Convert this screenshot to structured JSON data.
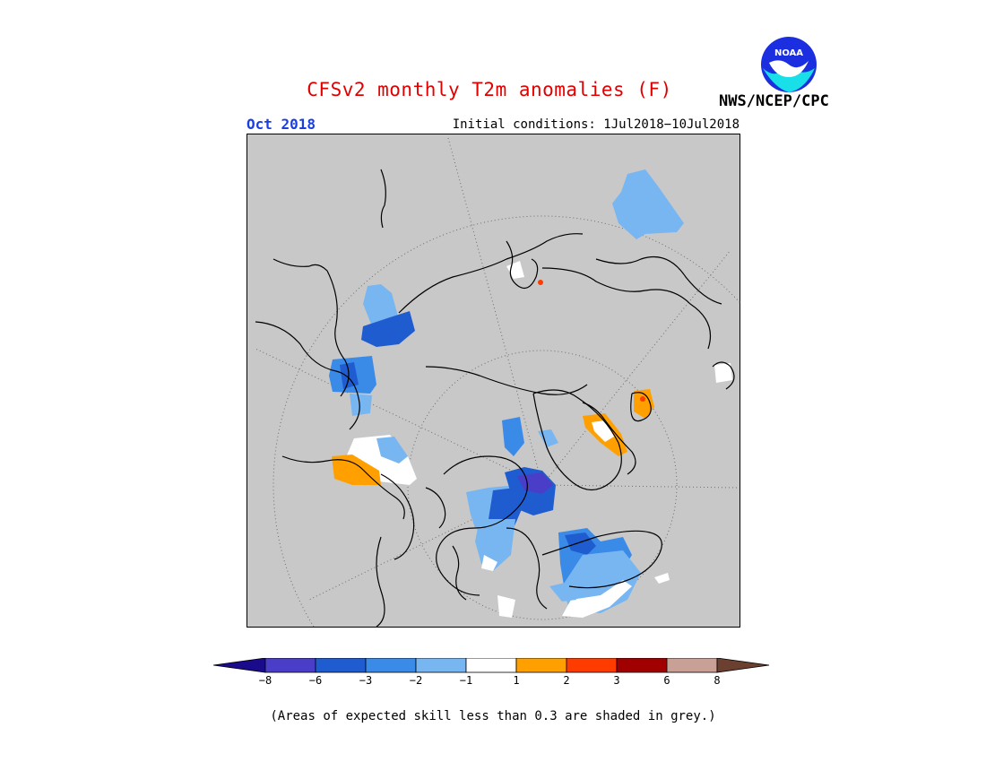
{
  "title": "CFSv2 monthly T2m anomalies (F)",
  "forecast_period": "Oct 2018",
  "initial_conditions": "Initial conditions: 1Jul2018−10Jul2018",
  "agency": "NWS/NCEP/CPC",
  "logo_text": "NOAA",
  "footnote": "(Areas of expected skill less than 0.3 are shaded in grey.)",
  "colorbar": {
    "under_color": "#1a0a8c",
    "over_color": "#6b4030",
    "bins": [
      {
        "color": "#4a3ec8"
      },
      {
        "color": "#1f5ccf"
      },
      {
        "color": "#3a8ae8"
      },
      {
        "color": "#78b6f2"
      },
      {
        "color": "#ffffff"
      },
      {
        "color": "#ffa000"
      },
      {
        "color": "#ff3c00"
      },
      {
        "color": "#a00000"
      },
      {
        "color": "#c8a096"
      }
    ],
    "ticks": [
      "−8",
      "−6",
      "−3",
      "−2",
      "−1",
      "1",
      "2",
      "3",
      "6",
      "8"
    ]
  },
  "map_colors": {
    "skill_mask": "#c8c8c8",
    "coastline": "#000000",
    "graticule": "#6e6e6e"
  }
}
